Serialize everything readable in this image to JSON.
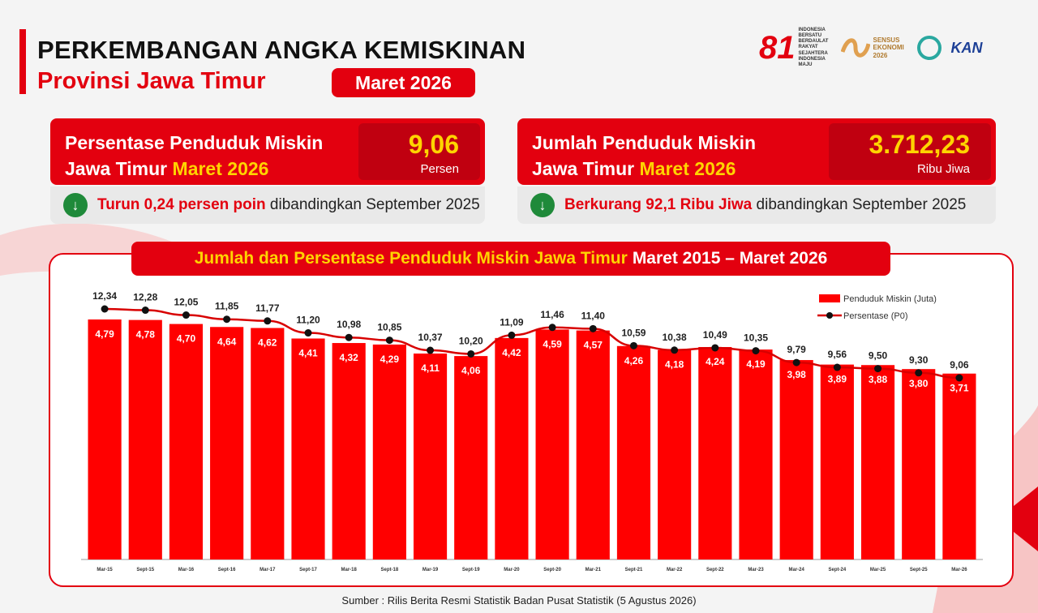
{
  "header": {
    "title": "PERKEMBANGAN ANGKA KEMISKINAN",
    "subtitle": "Provinsi Jawa Timur",
    "badge": "Maret 2026"
  },
  "logos": {
    "logo1_big": "81",
    "logo1_text": "INDONESIA BERSATU BERDAULAT RAKYAT SEJAHTERA INDONESIA MAJU",
    "logo2_text": "SENSUS EKONOMI 2026",
    "logo4_text": "KAN"
  },
  "kpi1": {
    "line1": "Persentase Penduduk Miskin",
    "line2_a": "Jawa Timur ",
    "line2_b": "Maret 2026",
    "value": "9,06",
    "unit": "Persen",
    "note_red": "Turun 0,24 persen poin",
    "note_rest": " dibandingkan September 2025"
  },
  "kpi2": {
    "line1": "Jumlah Penduduk Miskin",
    "line2_a": "Jawa Timur ",
    "line2_b": "Maret 2026",
    "value": "3.712,23",
    "unit": "Ribu Jiwa",
    "note_red": "Berkurang 92,1 Ribu Jiwa",
    "note_rest": " dibandingkan September 2025"
  },
  "colors": {
    "accent": "#e3000f",
    "highlight": "#ffd400",
    "down": "#1f8a3a"
  },
  "icons": {
    "down": "arrow-down-circle-icon"
  },
  "chart_title_a": "Jumlah dan Persentase Penduduk Miskin Jawa Timur",
  "chart_title_b": "Maret 2015 – Maret 2026",
  "source": "Sumber : Rilis Berita Resmi Statistik Badan Pusat Statistik (5 Agustus 2026)",
  "chart_data": {
    "type": "bar",
    "categories": [
      "Mar-15",
      "Sept-15",
      "Mar-16",
      "Sept-16",
      "Mar-17",
      "Sept-17",
      "Mar-18",
      "Sept-18",
      "Mar-19",
      "Sept-19",
      "Mar-20",
      "Sept-20",
      "Mar-21",
      "Sept-21",
      "Mar-22",
      "Sept-22",
      "Mar-23",
      "Mar-24",
      "Sept-24",
      "Mar-25",
      "Sept-25",
      "Mar-26"
    ],
    "series": [
      {
        "name": "Penduduk Miskin (Juta)",
        "type": "bar",
        "values": [
          4.79,
          4.78,
          4.7,
          4.64,
          4.62,
          4.41,
          4.32,
          4.29,
          4.11,
          4.06,
          4.42,
          4.59,
          4.57,
          4.26,
          4.18,
          4.24,
          4.19,
          3.98,
          3.89,
          3.88,
          3.8,
          3.71
        ],
        "labels": [
          "4,79",
          "4,78",
          "4,70",
          "4,64",
          "4,62",
          "4,41",
          "4,32",
          "4,29",
          "4,11",
          "4,06",
          "4,42",
          "4,59",
          "4,57",
          "4,26",
          "4,18",
          "4,24",
          "4,19",
          "3,98",
          "3,89",
          "3,88",
          "3,80",
          "3,71"
        ]
      },
      {
        "name": "Persentase (P0)",
        "type": "line",
        "values": [
          12.34,
          12.28,
          12.05,
          11.85,
          11.77,
          11.2,
          10.98,
          10.85,
          10.37,
          10.2,
          11.09,
          11.46,
          11.4,
          10.59,
          10.38,
          10.49,
          10.35,
          9.79,
          9.56,
          9.5,
          9.3,
          9.06
        ],
        "labels": [
          "12,34",
          "12,28",
          "12,05",
          "11,85",
          "11,77",
          "11,20",
          "10,98",
          "10,85",
          "10,37",
          "10,20",
          "11,09",
          "11,46",
          "11,40",
          "10,59",
          "10,38",
          "10,49",
          "10,35",
          "9,79",
          "9,56",
          "9,50",
          "9,30",
          "9,06"
        ]
      }
    ],
    "legend": "top-right",
    "grid": false
  }
}
